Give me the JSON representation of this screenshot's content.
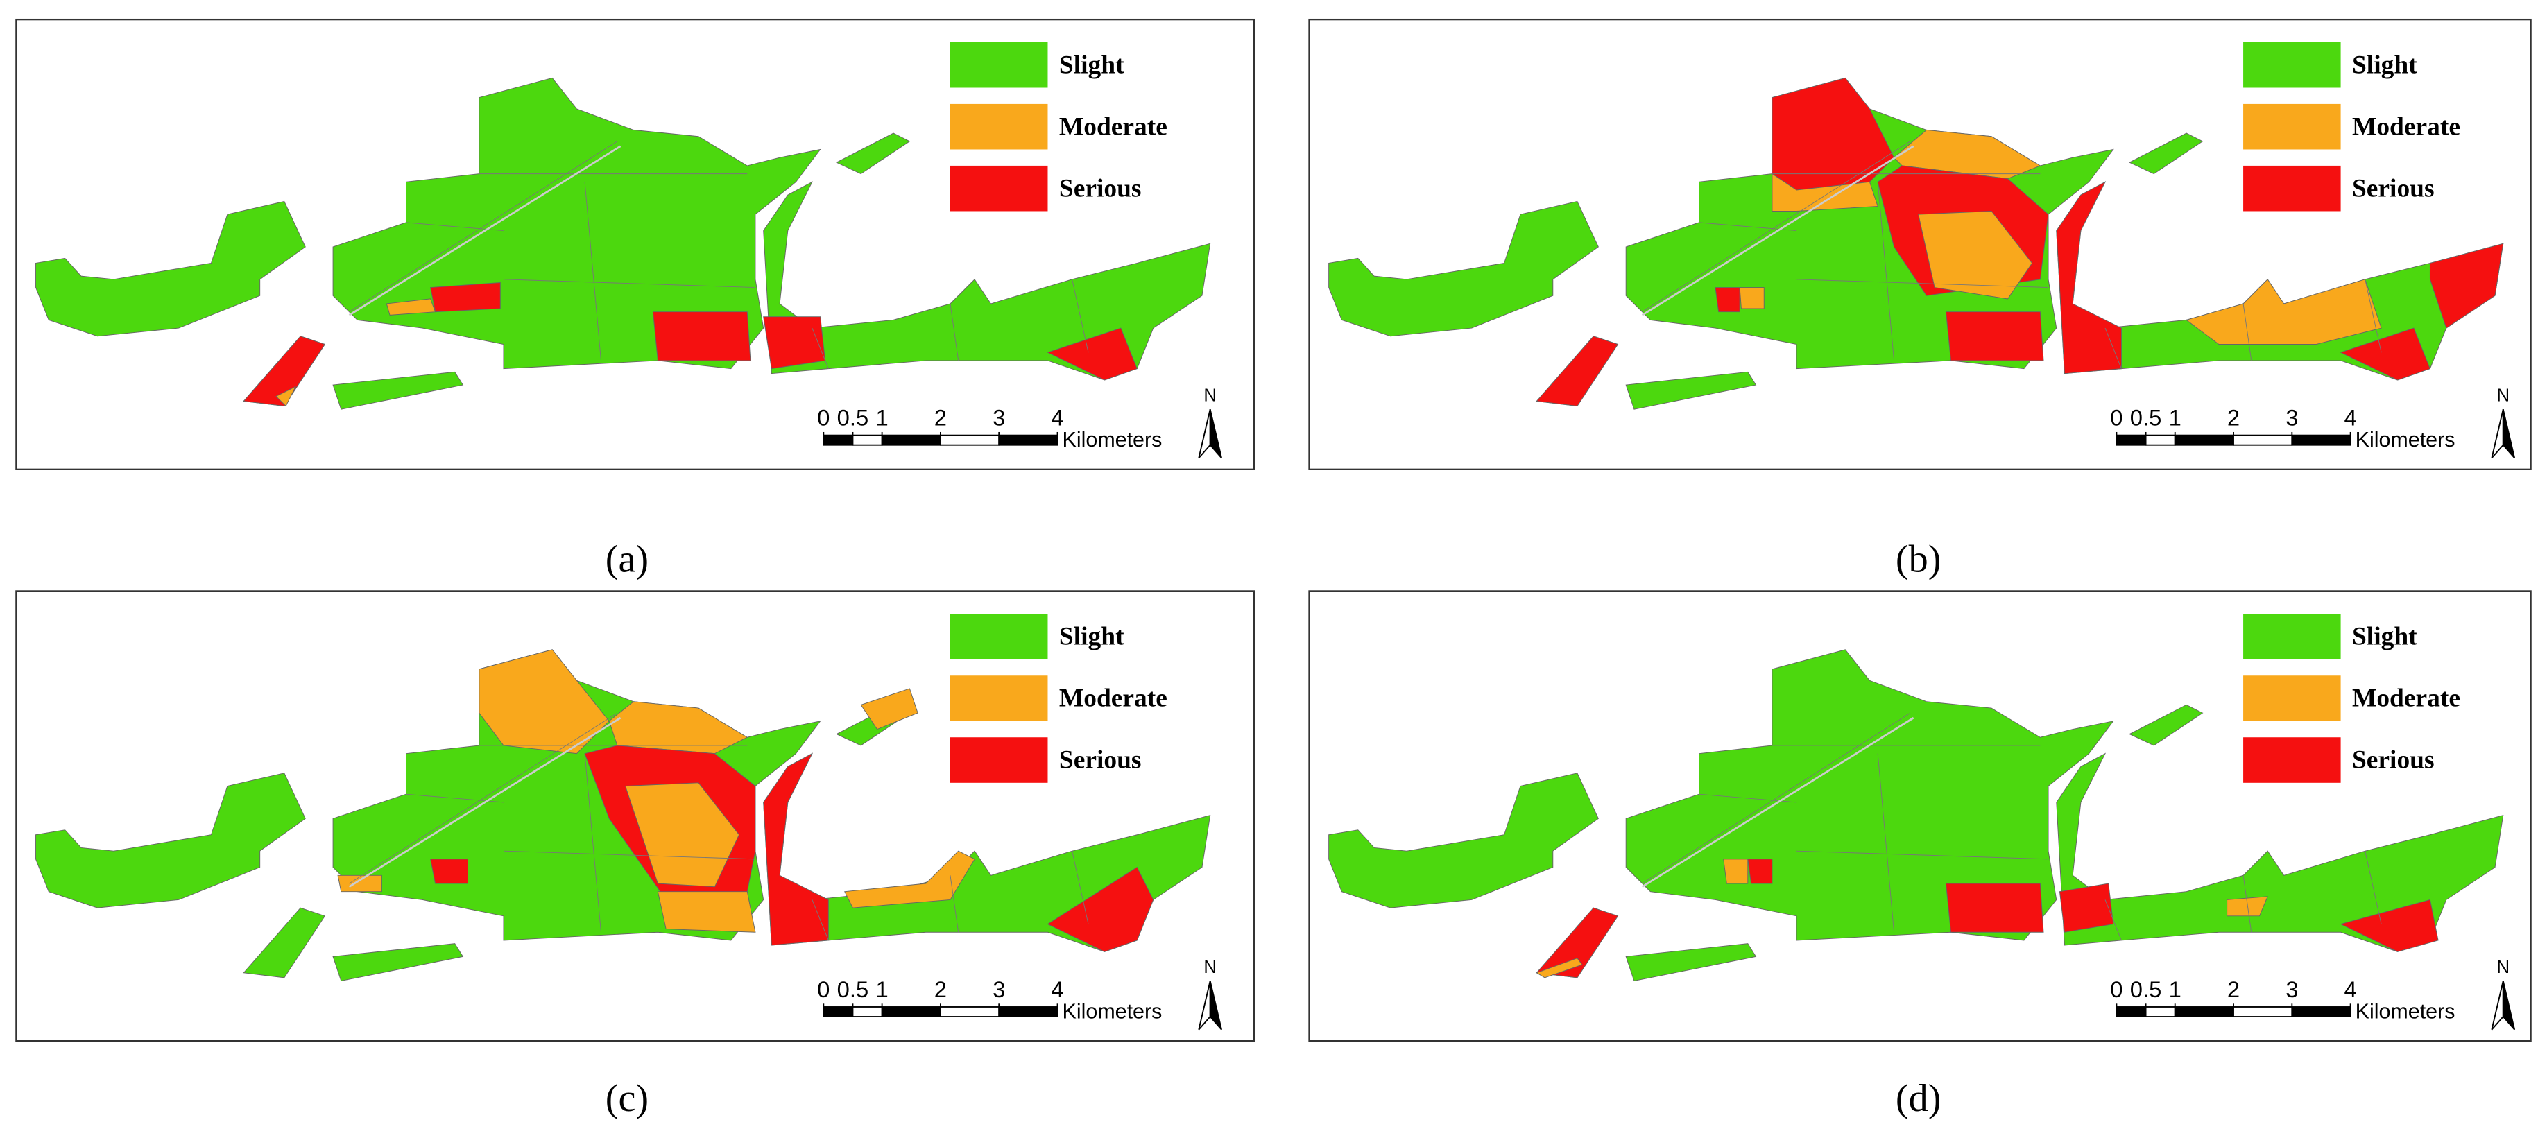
{
  "panels": [
    {
      "label": "(a)"
    },
    {
      "label": "(b)"
    },
    {
      "label": "(c)"
    },
    {
      "label": "(d)"
    }
  ],
  "legend": [
    {
      "label": "Slight",
      "color": "#4cd80e"
    },
    {
      "label": "Moderate",
      "color": "#f9a81c"
    },
    {
      "label": "Serious",
      "color": "#f51010"
    }
  ],
  "scale_bar": {
    "ticks": [
      0,
      0.5,
      1,
      2,
      3,
      4
    ],
    "unit": "Kilometers"
  },
  "north": "N"
}
